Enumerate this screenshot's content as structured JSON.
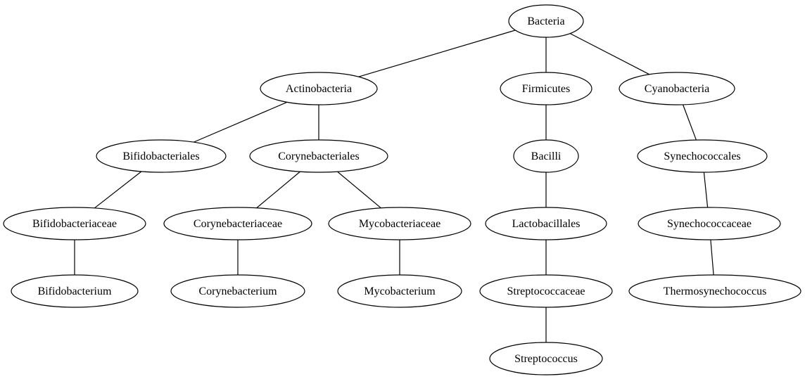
{
  "nodes": {
    "bacteria": "Bacteria",
    "actinobacteria": "Actinobacteria",
    "firmicutes": "Firmicutes",
    "cyanobacteria": "Cyanobacteria",
    "bifidobacteriales": "Bifidobacteriales",
    "corynebacteriales": "Corynebacteriales",
    "bacilli": "Bacilli",
    "synechococcales": "Synechococcales",
    "bifidobacteriaceae": "Bifidobacteriaceae",
    "corynebacteriaceae": "Corynebacteriaceae",
    "mycobacteriaceae": "Mycobacteriaceae",
    "lactobacillales": "Lactobacillales",
    "synechococcaceae": "Synechococcaceae",
    "bifidobacterium": "Bifidobacterium",
    "corynebacterium": "Corynebacterium",
    "mycobacterium": "Mycobacterium",
    "streptococcaceae": "Streptococcaceae",
    "thermosynechococcus": "Thermosynechococcus",
    "streptococcus": "Streptococcus"
  },
  "edges": [
    [
      "bacteria",
      "actinobacteria"
    ],
    [
      "bacteria",
      "firmicutes"
    ],
    [
      "bacteria",
      "cyanobacteria"
    ],
    [
      "actinobacteria",
      "bifidobacteriales"
    ],
    [
      "actinobacteria",
      "corynebacteriales"
    ],
    [
      "firmicutes",
      "bacilli"
    ],
    [
      "cyanobacteria",
      "synechococcales"
    ],
    [
      "bifidobacteriales",
      "bifidobacteriaceae"
    ],
    [
      "corynebacteriales",
      "corynebacteriaceae"
    ],
    [
      "corynebacteriales",
      "mycobacteriaceae"
    ],
    [
      "bacilli",
      "lactobacillales"
    ],
    [
      "synechococcales",
      "synechococcaceae"
    ],
    [
      "bifidobacteriaceae",
      "bifidobacterium"
    ],
    [
      "corynebacteriaceae",
      "corynebacterium"
    ],
    [
      "mycobacteriaceae",
      "mycobacterium"
    ],
    [
      "lactobacillales",
      "streptococcaceae"
    ],
    [
      "synechococcaceae",
      "thermosynechococcus"
    ],
    [
      "streptococcaceae",
      "streptococcus"
    ]
  ]
}
